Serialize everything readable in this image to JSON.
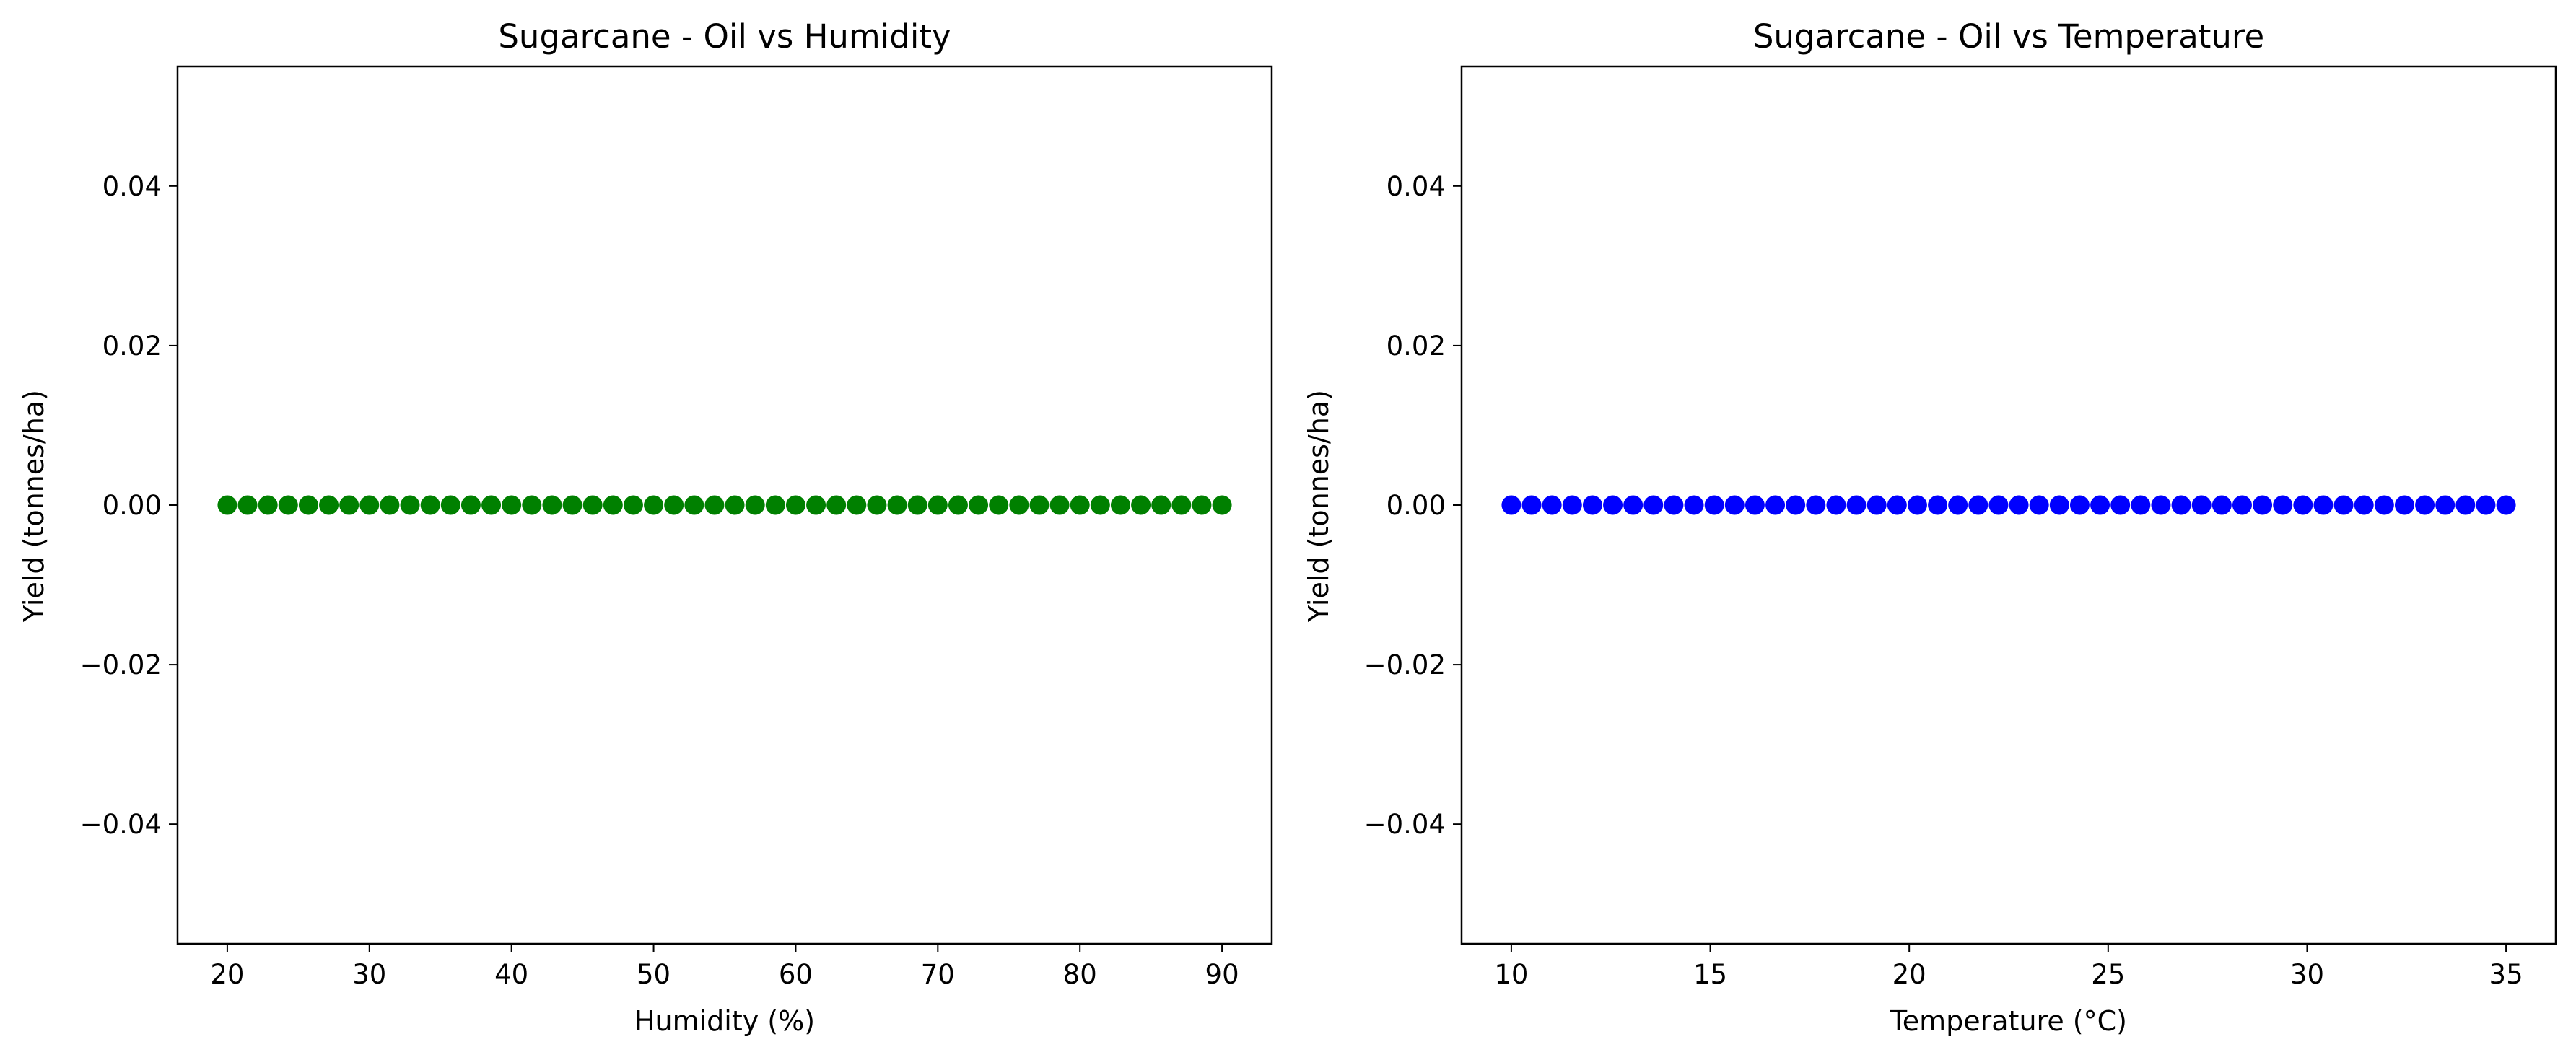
{
  "chart_data": [
    {
      "type": "scatter",
      "title": "Sugarcane - Oil vs Humidity",
      "xlabel": "Humidity (%)",
      "ylabel": "Yield (tonnes/ha)",
      "xlim": [
        16.5,
        93.5
      ],
      "ylim": [
        -0.055,
        0.055
      ],
      "xticks": [
        20,
        30,
        40,
        50,
        60,
        70,
        80,
        90
      ],
      "yticks": [
        -0.04,
        -0.02,
        0.0,
        0.02,
        0.04
      ],
      "ytick_labels": [
        "−0.04",
        "−0.02",
        "0.00",
        "0.02",
        "0.04"
      ],
      "color": "#008000",
      "x_range": [
        20,
        90
      ],
      "n_points": 50,
      "y_value": 0.0,
      "grid": false,
      "legend": false
    },
    {
      "type": "scatter",
      "title": "Sugarcane - Oil vs Temperature",
      "xlabel": "Temperature (°C)",
      "ylabel": "Yield (tonnes/ha)",
      "xlim": [
        8.75,
        36.25
      ],
      "ylim": [
        -0.055,
        0.055
      ],
      "xticks": [
        10,
        15,
        20,
        25,
        30,
        35
      ],
      "yticks": [
        -0.04,
        -0.02,
        0.0,
        0.02,
        0.04
      ],
      "ytick_labels": [
        "−0.04",
        "−0.02",
        "0.00",
        "0.02",
        "0.04"
      ],
      "color": "#0000ff",
      "x_range": [
        10,
        35
      ],
      "n_points": 50,
      "y_value": 0.0,
      "grid": false,
      "legend": false
    }
  ]
}
